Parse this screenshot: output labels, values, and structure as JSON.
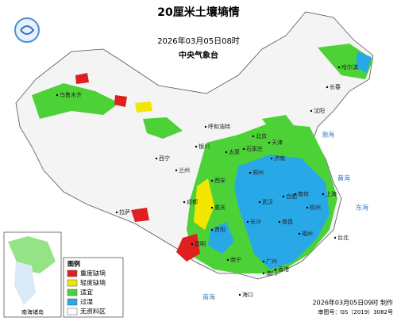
{
  "header": {
    "title": "20厘米土壤墒情",
    "time": "2026年03月05日08时",
    "agency": "中央气象台"
  },
  "legend": {
    "title": "图例",
    "items": [
      {
        "label": "重度缺墒",
        "color": "#e02020"
      },
      {
        "label": "轻度缺墒",
        "color": "#f2e600"
      },
      {
        "label": "适宜",
        "color": "#4cd137"
      },
      {
        "label": "过湿",
        "color": "#29a8e8"
      },
      {
        "label": "无资料区",
        "color": "#ffffff"
      }
    ]
  },
  "places": [
    "北京",
    "天津",
    "石家庄",
    "太原",
    "济南",
    "郑州",
    "西安",
    "兰州",
    "西宁",
    "银川",
    "呼和浩特",
    "沈阳",
    "长春",
    "哈尔滨",
    "南京",
    "上海",
    "合肥",
    "杭州",
    "武汉",
    "长沙",
    "南昌",
    "福州",
    "台北",
    "广州",
    "香港",
    "澳门",
    "南宁",
    "海口",
    "贵阳",
    "昆明",
    "重庆",
    "成都",
    "拉萨",
    "乌鲁木齐"
  ],
  "seas": [
    "渤海",
    "黄海",
    "东海",
    "南海"
  ],
  "inset": {
    "label": "南海诸岛"
  },
  "footer": {
    "made": "2026年03月05日09时 制作",
    "approval": "审图号：GS（2019）3082号"
  }
}
